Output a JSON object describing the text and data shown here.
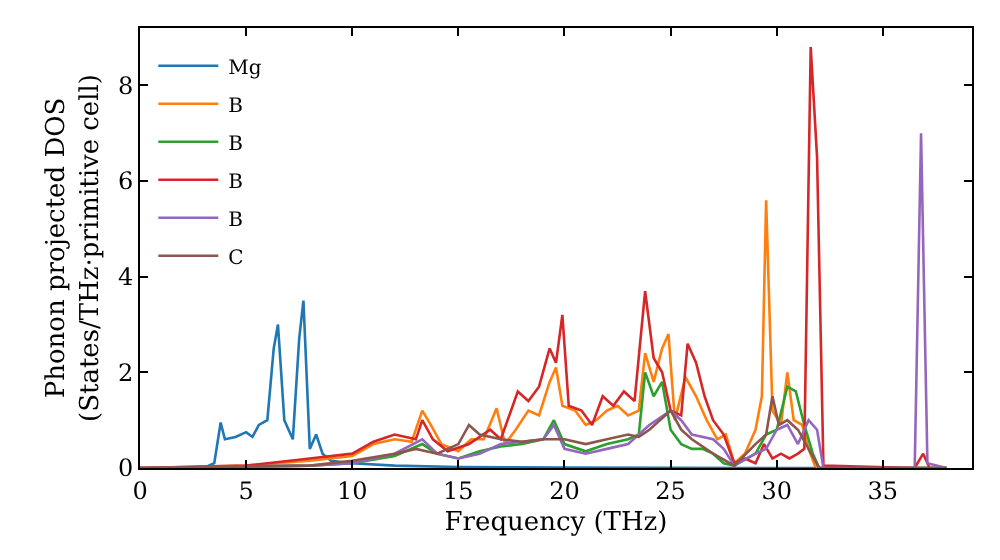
{
  "chart_data": {
    "type": "line",
    "xlabel": "Frequency (THz)",
    "ylabel": "Phonon projected DOS\n(States/THz·primitive cell)",
    "xlim": [
      0,
      39.2
    ],
    "ylim": [
      0,
      9.2
    ],
    "xticks": [
      0,
      5,
      10,
      15,
      20,
      25,
      30,
      35
    ],
    "yticks": [
      0,
      2,
      4,
      6,
      8
    ],
    "legend": "top left",
    "marker": "none",
    "line_style": "solid",
    "series": [
      {
        "name": "Mg",
        "color": "#1f77b4",
        "x": [
          0,
          3,
          3.5,
          3.8,
          4.0,
          4.5,
          5,
          5.3,
          5.6,
          6,
          6.3,
          6.5,
          6.8,
          7.2,
          7.5,
          7.7,
          8.0,
          8.3,
          8.6,
          9,
          10,
          12,
          15,
          20,
          30,
          38
        ],
        "values": [
          0,
          0,
          0.1,
          0.95,
          0.6,
          0.65,
          0.75,
          0.65,
          0.9,
          1.0,
          2.5,
          3.0,
          1.0,
          0.6,
          2.7,
          3.5,
          0.4,
          0.7,
          0.3,
          0.15,
          0.1,
          0.05,
          0.02,
          0.01,
          0,
          0
        ]
      },
      {
        "name": "B",
        "color": "#ff7f0e",
        "x": [
          0,
          5,
          8,
          10,
          11,
          12,
          12.8,
          13.3,
          13.7,
          14.2,
          15,
          15.6,
          16.2,
          16.8,
          17.2,
          17.7,
          18.3,
          18.8,
          19.3,
          19.6,
          19.9,
          20.5,
          21,
          21.5,
          22,
          22.5,
          23,
          23.5,
          23.8,
          24.2,
          24.6,
          24.9,
          25.2,
          25.7,
          26.2,
          26.7,
          27.2,
          27.6,
          28,
          28.5,
          29,
          29.3,
          29.5,
          29.8,
          30.2,
          30.5,
          30.8,
          31.2,
          31.5,
          31.8,
          32,
          38
        ],
        "values": [
          0,
          0.05,
          0.15,
          0.25,
          0.5,
          0.6,
          0.55,
          1.2,
          0.9,
          0.5,
          0.35,
          0.6,
          0.6,
          1.25,
          0.5,
          0.8,
          1.2,
          1.1,
          1.8,
          2.1,
          1.3,
          1.2,
          0.9,
          1.0,
          1.2,
          1.3,
          1.1,
          1.2,
          2.4,
          1.8,
          2.5,
          2.8,
          1.0,
          1.9,
          1.5,
          1.0,
          0.6,
          0.7,
          0.1,
          0.3,
          0.8,
          1.5,
          5.6,
          1.2,
          0.9,
          2.0,
          1.0,
          0.9,
          0.4,
          0.05,
          0,
          0
        ]
      },
      {
        "name": "B",
        "color": "#2ca02c",
        "x": [
          0,
          8,
          10,
          12,
          13.3,
          14,
          15,
          16,
          17,
          18,
          19,
          19.5,
          20,
          21,
          22,
          23,
          23.5,
          23.8,
          24.2,
          24.6,
          25,
          25.5,
          26,
          26.5,
          27,
          27.5,
          28,
          29,
          29.5,
          30,
          30.5,
          30.9,
          31.3,
          31.7,
          32,
          38
        ],
        "values": [
          0,
          0.05,
          0.1,
          0.25,
          0.5,
          0.3,
          0.2,
          0.35,
          0.45,
          0.5,
          0.6,
          1.0,
          0.5,
          0.35,
          0.5,
          0.6,
          0.7,
          2.0,
          1.5,
          1.8,
          0.8,
          0.5,
          0.4,
          0.4,
          0.3,
          0.1,
          0.05,
          0.3,
          0.7,
          0.8,
          1.7,
          1.6,
          0.9,
          0.3,
          0,
          0
        ]
      },
      {
        "name": "B",
        "color": "#d62728",
        "x": [
          0,
          5,
          8,
          10,
          11,
          12,
          13,
          13.3,
          13.8,
          14.5,
          15.5,
          16.5,
          17,
          17.8,
          18.3,
          18.8,
          19.3,
          19.6,
          19.9,
          20.2,
          20.8,
          21.3,
          21.8,
          22.3,
          22.8,
          23.3,
          23.8,
          24.2,
          24.6,
          25,
          25.5,
          25.8,
          26.2,
          26.6,
          27,
          27.5,
          28,
          28.5,
          29,
          29.4,
          29.8,
          30.2,
          30.6,
          31,
          31.3,
          31.6,
          31.9,
          32.2,
          36.5,
          36.9,
          37.2,
          38
        ],
        "values": [
          0,
          0.05,
          0.2,
          0.3,
          0.55,
          0.7,
          0.6,
          1.0,
          0.6,
          0.35,
          0.5,
          0.8,
          0.6,
          1.6,
          1.4,
          1.7,
          2.5,
          2.2,
          3.2,
          1.3,
          1.2,
          0.9,
          1.5,
          1.3,
          1.6,
          1.4,
          3.7,
          2.3,
          2.0,
          1.2,
          1.1,
          2.6,
          2.2,
          1.5,
          1.0,
          0.7,
          0.1,
          0.2,
          0.1,
          0.5,
          0.2,
          0.3,
          0.2,
          0.3,
          0.4,
          8.8,
          6.5,
          0.05,
          0,
          0.3,
          0,
          0
        ]
      },
      {
        "name": "B",
        "color": "#9467bd",
        "x": [
          0,
          8,
          10,
          12,
          13.3,
          14,
          15,
          16,
          17,
          18,
          19,
          19.5,
          20,
          21,
          22,
          23,
          24,
          25,
          25.5,
          26,
          27,
          27.5,
          28,
          29,
          29.5,
          30,
          30.5,
          31,
          31.5,
          31.9,
          32.2,
          36.5,
          36.8,
          37.1,
          38
        ],
        "values": [
          0,
          0.05,
          0.1,
          0.3,
          0.6,
          0.3,
          0.2,
          0.3,
          0.5,
          0.55,
          0.6,
          0.9,
          0.4,
          0.3,
          0.4,
          0.5,
          0.9,
          1.2,
          1.0,
          0.7,
          0.6,
          0.4,
          0.05,
          0.3,
          0.4,
          0.8,
          0.9,
          0.5,
          1.0,
          0.8,
          0,
          0,
          7.0,
          0.1,
          0
        ]
      },
      {
        "name": "C",
        "color": "#8c564b",
        "x": [
          0,
          8,
          10,
          12,
          13,
          14,
          15,
          15.5,
          16,
          17,
          18,
          19,
          20,
          21,
          22,
          23,
          23.5,
          24,
          25,
          25.5,
          26,
          27,
          28,
          29,
          29.5,
          29.8,
          30.1,
          30.5,
          31,
          31.5,
          32,
          38
        ],
        "values": [
          0,
          0.05,
          0.15,
          0.3,
          0.4,
          0.3,
          0.5,
          0.9,
          0.7,
          0.6,
          0.55,
          0.6,
          0.6,
          0.5,
          0.6,
          0.7,
          0.65,
          0.8,
          1.2,
          0.8,
          0.6,
          0.3,
          0.05,
          0.5,
          0.7,
          1.5,
          0.9,
          1.0,
          0.8,
          0.4,
          0,
          0
        ]
      }
    ]
  }
}
